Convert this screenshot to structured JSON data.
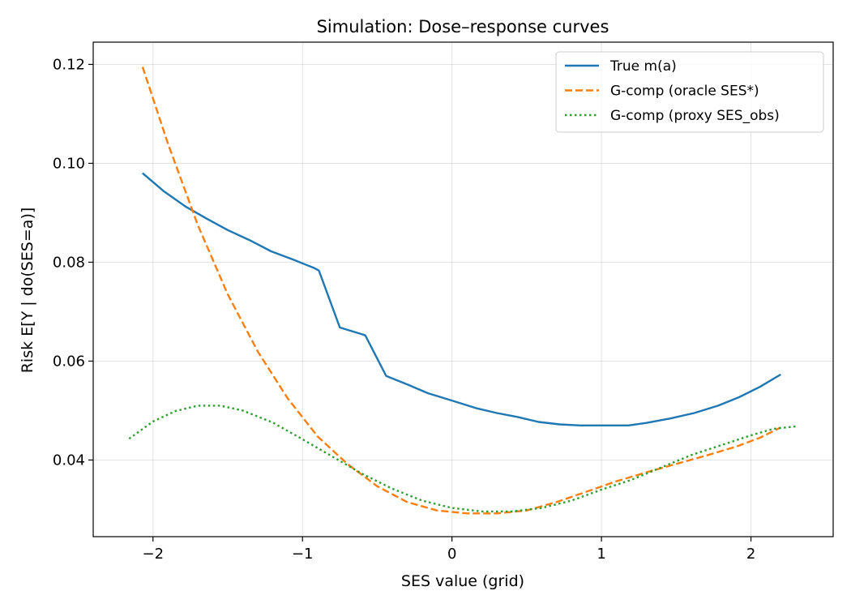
{
  "chart_data": {
    "type": "line",
    "title": "Simulation: Dose–response curves",
    "xlabel": "SES value (grid)",
    "ylabel": "Risk E[Y | do(SES=a)]",
    "xlim": [
      -2.4,
      2.55
    ],
    "ylim": [
      0.0245,
      0.1245
    ],
    "xticks": [
      -2,
      -1,
      0,
      1,
      2
    ],
    "xtick_labels": [
      "−2",
      "−1",
      "0",
      "1",
      "2"
    ],
    "yticks": [
      0.04,
      0.06,
      0.08,
      0.1,
      0.12
    ],
    "ytick_labels": [
      "0.04",
      "0.06",
      "0.08",
      "0.10",
      "0.12"
    ],
    "grid": true,
    "legend_position": "top-right",
    "series": [
      {
        "name": "True m(a)",
        "color": "#1f77b4",
        "style": "solid",
        "x": [
          -2.07,
          -1.93,
          -1.78,
          -1.64,
          -1.5,
          -1.35,
          -1.21,
          -1.06,
          -0.92,
          -0.89,
          -0.75,
          -0.61,
          -0.58,
          -0.44,
          -0.3,
          -0.16,
          -0.02,
          0.16,
          0.3,
          0.44,
          0.58,
          0.72,
          0.86,
          1.0,
          1.18,
          1.3,
          1.46,
          1.62,
          1.78,
          1.92,
          2.06,
          2.2
        ],
        "y": [
          0.098,
          0.0944,
          0.0912,
          0.0888,
          0.0865,
          0.0844,
          0.0822,
          0.0805,
          0.0788,
          0.0783,
          0.0668,
          0.0655,
          0.0652,
          0.057,
          0.0553,
          0.0535,
          0.0522,
          0.0505,
          0.0495,
          0.0487,
          0.0477,
          0.0472,
          0.047,
          0.047,
          0.047,
          0.0475,
          0.0484,
          0.0495,
          0.051,
          0.0527,
          0.0548,
          0.0573
        ]
      },
      {
        "name": "G-comp (oracle SES*)",
        "color": "#ff7f0e",
        "style": "dashed",
        "x": [
          -2.07,
          -1.9,
          -1.7,
          -1.5,
          -1.3,
          -1.1,
          -0.9,
          -0.7,
          -0.5,
          -0.3,
          -0.1,
          0.1,
          0.3,
          0.5,
          0.7,
          0.9,
          1.1,
          1.3,
          1.5,
          1.7,
          1.9,
          2.06,
          2.2
        ],
        "y": [
          0.1195,
          0.104,
          0.0875,
          0.0735,
          0.062,
          0.0525,
          0.0448,
          0.0392,
          0.0347,
          0.0315,
          0.0298,
          0.0292,
          0.0292,
          0.0298,
          0.0315,
          0.0336,
          0.0357,
          0.0375,
          0.0392,
          0.0409,
          0.0427,
          0.0445,
          0.0466
        ]
      },
      {
        "name": "G-comp (proxy SES_obs)",
        "color": "#2ca02c",
        "style": "dotted",
        "x": [
          -2.16,
          -2.0,
          -1.85,
          -1.7,
          -1.55,
          -1.4,
          -1.2,
          -1.0,
          -0.8,
          -0.6,
          -0.4,
          -0.2,
          0.0,
          0.2,
          0.4,
          0.6,
          0.8,
          1.0,
          1.2,
          1.4,
          1.6,
          1.8,
          2.0,
          2.15,
          2.3
        ],
        "y": [
          0.0443,
          0.0478,
          0.0499,
          0.051,
          0.051,
          0.05,
          0.0476,
          0.0442,
          0.0407,
          0.0372,
          0.0342,
          0.0318,
          0.0303,
          0.0296,
          0.0296,
          0.0303,
          0.0318,
          0.034,
          0.036,
          0.0385,
          0.041,
          0.043,
          0.045,
          0.0463,
          0.0468
        ]
      }
    ]
  }
}
